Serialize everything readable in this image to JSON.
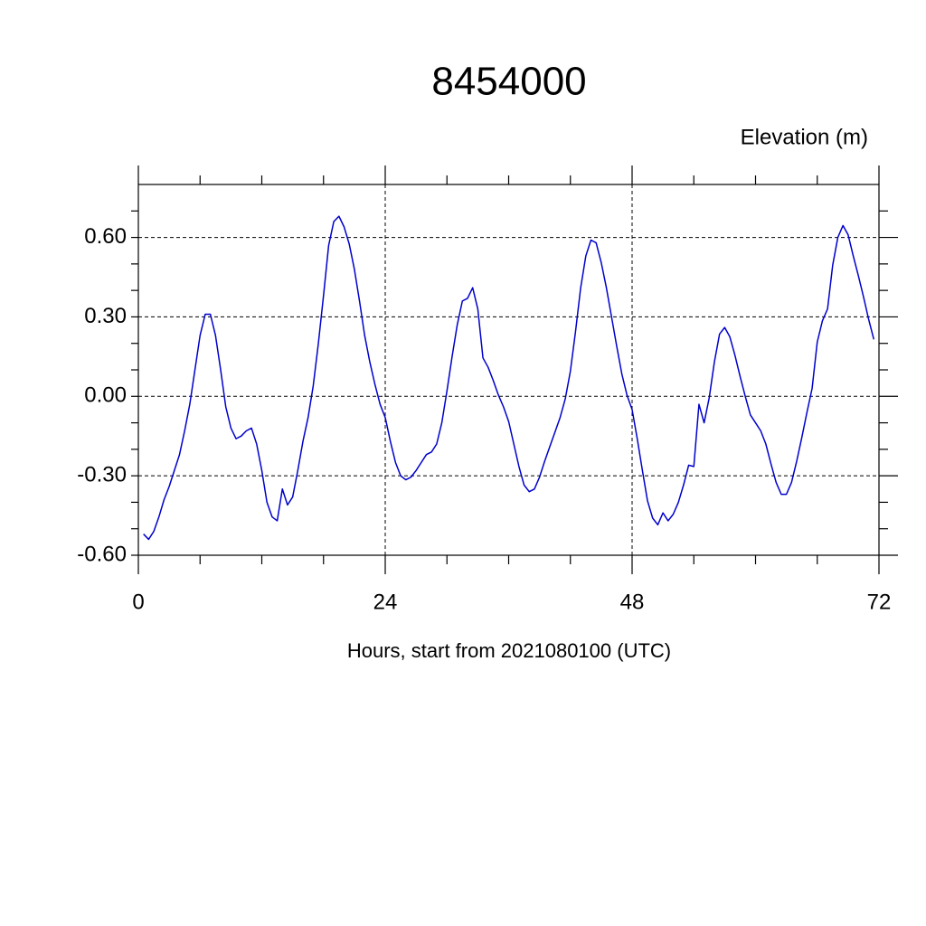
{
  "chart_data": {
    "type": "line",
    "title": "8454000",
    "subtitle": "Elevation (m)",
    "xlabel": "Hours, start from 2021080100 (UTC)",
    "xlim": [
      0,
      72
    ],
    "ylim": [
      -0.6,
      0.8
    ],
    "xticks": [
      0,
      24,
      48,
      72
    ],
    "xminorticks": [
      6,
      12,
      18,
      30,
      36,
      42,
      54,
      60,
      66
    ],
    "yticks": [
      {
        "value": -0.6,
        "label": "-0.60"
      },
      {
        "value": -0.3,
        "label": "-0.30"
      },
      {
        "value": 0,
        "label": "0.00"
      },
      {
        "value": 0.3,
        "label": "0.30"
      },
      {
        "value": 0.6,
        "label": "0.60"
      }
    ],
    "yminorticks": [
      -0.5,
      -0.4,
      -0.2,
      -0.1,
      0.1,
      0.2,
      0.4,
      0.5,
      0.7
    ],
    "grid": true,
    "x": [
      0.5,
      1,
      1.5,
      2,
      2.5,
      3,
      3.5,
      4,
      4.5,
      5,
      5.5,
      6,
      6.5,
      7,
      7.5,
      8,
      8.5,
      9,
      9.5,
      10,
      10.5,
      11,
      11.5,
      12,
      12.5,
      13,
      13.5,
      14,
      14.5,
      15,
      15.5,
      16,
      16.5,
      17,
      17.5,
      18,
      18.5,
      19,
      19.5,
      20,
      20.5,
      21,
      21.5,
      22,
      22.5,
      23,
      23.5,
      24,
      24.5,
      25,
      25.5,
      26,
      26.5,
      27,
      27.5,
      28,
      28.5,
      29,
      29.5,
      30,
      30.5,
      31,
      31.5,
      32,
      32.5,
      33,
      33.5,
      34,
      34.5,
      35,
      35.5,
      36,
      36.5,
      37,
      37.5,
      38,
      38.5,
      39,
      39.5,
      40,
      40.5,
      41,
      41.5,
      42,
      42.5,
      43,
      43.5,
      44,
      44.5,
      45,
      45.5,
      46,
      46.5,
      47,
      47.5,
      48,
      48.5,
      49,
      49.5,
      50,
      50.5,
      51,
      51.5,
      52,
      52.5,
      53,
      53.5,
      54,
      54.5,
      55,
      55.5,
      56,
      56.5,
      57,
      57.5,
      58,
      58.5,
      59,
      59.5,
      60,
      60.5,
      61,
      61.5,
      62,
      62.5,
      63,
      63.5,
      64,
      64.5,
      65,
      65.5,
      66,
      66.5,
      67,
      67.5,
      68,
      68.5,
      69,
      69.5,
      70,
      70.5,
      71,
      71.5
    ],
    "series": [
      {
        "name": "Elevation",
        "color": "#0000cc",
        "values": [
          -0.52,
          -0.54,
          -0.51,
          -0.455,
          -0.39,
          -0.34,
          -0.28,
          -0.22,
          -0.13,
          -0.03,
          0.1,
          0.23,
          0.31,
          0.31,
          0.23,
          0.1,
          -0.04,
          -0.12,
          -0.16,
          -0.15,
          -0.13,
          -0.12,
          -0.18,
          -0.28,
          -0.4,
          -0.455,
          -0.47,
          -0.35,
          -0.41,
          -0.38,
          -0.28,
          -0.17,
          -0.08,
          0.04,
          0.2,
          0.38,
          0.57,
          0.66,
          0.68,
          0.64,
          0.575,
          0.48,
          0.36,
          0.23,
          0.13,
          0.045,
          -0.03,
          -0.08,
          -0.17,
          -0.25,
          -0.3,
          -0.315,
          -0.305,
          -0.28,
          -0.25,
          -0.22,
          -0.21,
          -0.18,
          -0.1,
          0.02,
          0.15,
          0.27,
          0.36,
          0.37,
          0.41,
          0.33,
          0.145,
          0.11,
          0.06,
          0.005,
          -0.04,
          -0.095,
          -0.18,
          -0.265,
          -0.335,
          -0.36,
          -0.35,
          -0.305,
          -0.245,
          -0.19,
          -0.135,
          -0.08,
          -0.01,
          0.095,
          0.245,
          0.41,
          0.53,
          0.59,
          0.58,
          0.505,
          0.41,
          0.3,
          0.19,
          0.085,
          0.005,
          -0.05,
          -0.16,
          -0.28,
          -0.395,
          -0.46,
          -0.485,
          -0.44,
          -0.47,
          -0.445,
          -0.4,
          -0.335,
          -0.26,
          -0.265,
          -0.03,
          -0.1,
          -0.005,
          0.13,
          0.235,
          0.26,
          0.225,
          0.155,
          0.075,
          0.0,
          -0.07,
          -0.1,
          -0.13,
          -0.18,
          -0.255,
          -0.325,
          -0.37,
          -0.37,
          -0.325,
          -0.245,
          -0.155,
          -0.06,
          0.03,
          0.205,
          0.285,
          0.33,
          0.495,
          0.6,
          0.645,
          0.61,
          0.53,
          0.455,
          0.375,
          0.29,
          0.215
        ]
      }
    ]
  }
}
